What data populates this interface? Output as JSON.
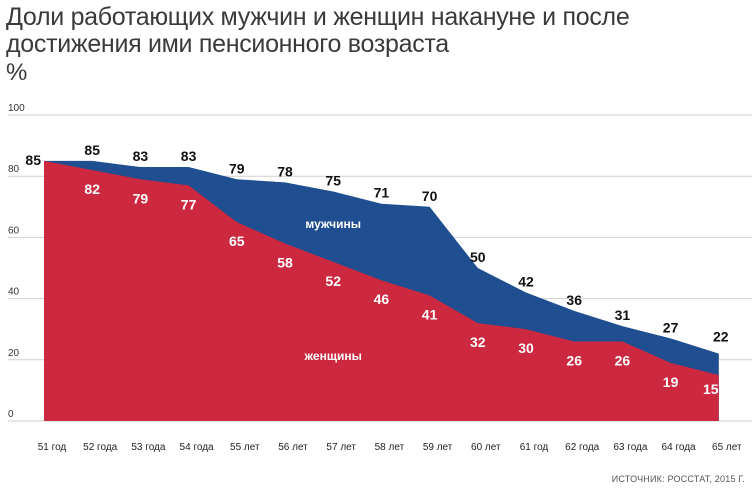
{
  "title": "Доли работающих мужчин и женщин накануне и после достижения ими пенсионного возраста",
  "unit": "%",
  "source": "ИСТОЧНИК: РОССТАТ, 2015 Г.",
  "colors": {
    "men": "#1f4e91",
    "women": "#cc2840",
    "grid": "#cfcfcf"
  },
  "chart_data": {
    "type": "area",
    "title": "Доли работающих мужчин и женщин накануне и после достижения ими пенсионного возраста",
    "ylabel": "%",
    "ylim": [
      0,
      100
    ],
    "yticks": [
      0,
      20,
      40,
      60,
      80,
      100
    ],
    "grid": true,
    "categories": [
      "51 год",
      "52 года",
      "53 года",
      "54 года",
      "55 лет",
      "56 лет",
      "57 лет",
      "58 лет",
      "59 лет",
      "60 лет",
      "61 год",
      "62 года",
      "63 года",
      "64 года",
      "65 лет"
    ],
    "series": [
      {
        "name": "мужчины",
        "values": [
          85,
          85,
          83,
          83,
          79,
          78,
          75,
          71,
          70,
          50,
          42,
          36,
          31,
          27,
          22
        ]
      },
      {
        "name": "женщины",
        "values": [
          85,
          82,
          79,
          77,
          65,
          58,
          52,
          46,
          41,
          32,
          30,
          26,
          26,
          19,
          15
        ]
      }
    ]
  }
}
